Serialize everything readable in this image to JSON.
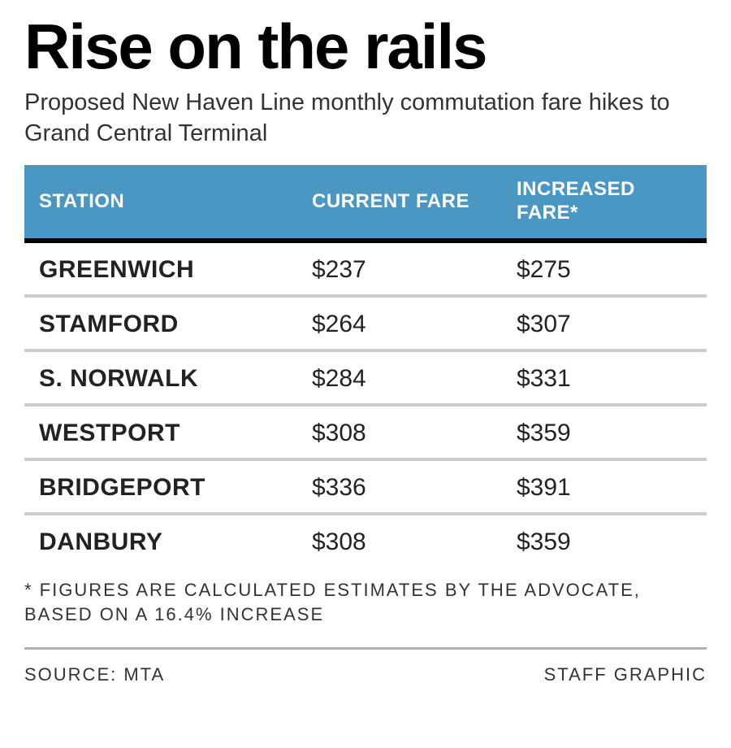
{
  "title": "Rise on the rails",
  "subtitle": "Proposed New Haven Line monthly commutation fare hikes to Grand Central Terminal",
  "table": {
    "type": "table",
    "header_bg": "#4a97c4",
    "header_text_color": "#ffffff",
    "row_border_color": "#cccccc",
    "header_border_color": "#000000",
    "text_color": "#222222",
    "station_fontweight": 900,
    "value_fontweight": 400,
    "header_fontsize": 24,
    "cell_fontsize": 30,
    "columns": [
      "STATION",
      "CURRENT FARE",
      "INCREASED FARE*"
    ],
    "column_widths": [
      "40%",
      "30%",
      "30%"
    ],
    "rows": [
      {
        "station": "GREENWICH",
        "current": "$237",
        "increased": "$275"
      },
      {
        "station": "STAMFORD",
        "current": "$264",
        "increased": "$307"
      },
      {
        "station": "S. NORWALK",
        "current": "$284",
        "increased": "$331"
      },
      {
        "station": "WESTPORT",
        "current": "$308",
        "increased": "$359"
      },
      {
        "station": "BRIDGEPORT",
        "current": "$336",
        "increased": "$391"
      },
      {
        "station": "DANBURY",
        "current": "$308",
        "increased": "$359"
      }
    ]
  },
  "footnote": "* FIGURES ARE CALCULATED ESTIMATES BY THE ADVOCATE, BASED ON A 16.4% INCREASE",
  "source": "SOURCE: MTA",
  "credit": "STAFF GRAPHIC",
  "colors": {
    "background": "#ffffff",
    "title_color": "#000000",
    "subtitle_color": "#333333",
    "divider_color": "#b0b0b0"
  },
  "typography": {
    "title_fontsize": 78,
    "subtitle_fontsize": 29,
    "footnote_fontsize": 22,
    "footnote_letterspacing": 2
  }
}
